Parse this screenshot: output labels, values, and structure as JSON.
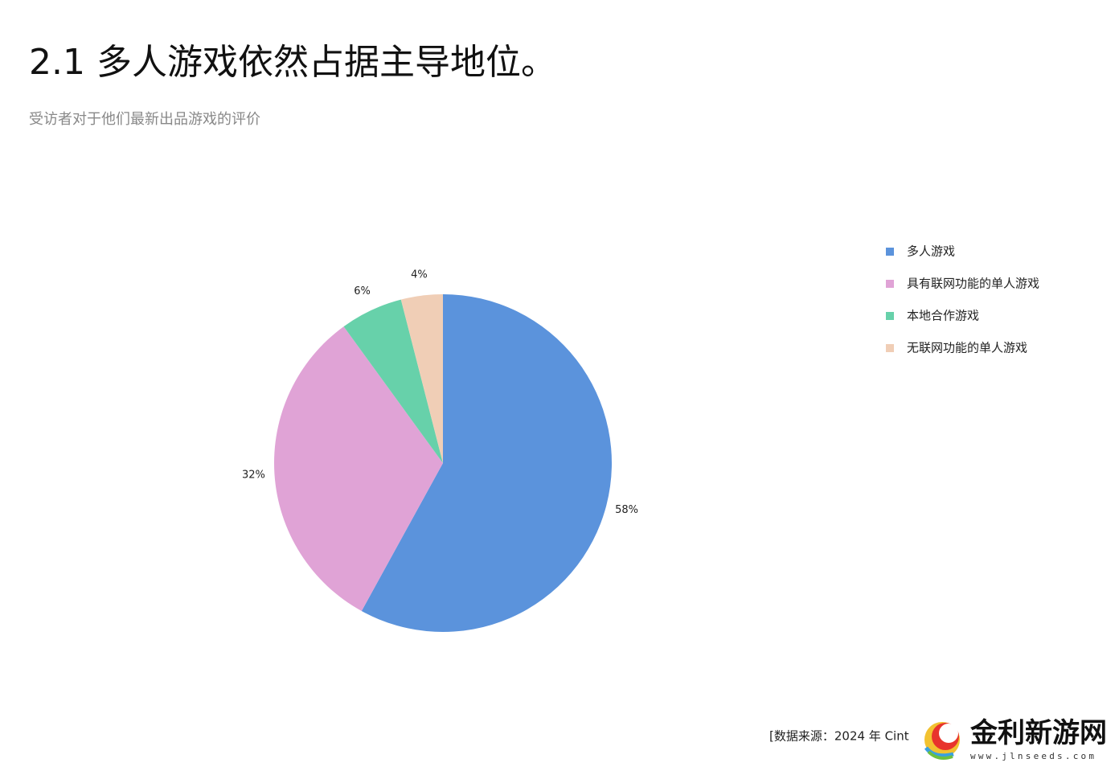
{
  "chart_data": {
    "type": "pie",
    "title": "2.1 多人游戏依然占据主导地位。",
    "subtitle": "受访者对于他们最新出品游戏的评价",
    "categories": [
      "多人游戏",
      "具有联网功能的单人游戏",
      "本地合作游戏",
      "无联网功能的单人游戏"
    ],
    "values": [
      58,
      32,
      6,
      4
    ],
    "value_labels": [
      "58%",
      "32%",
      "6%",
      "4%"
    ],
    "colors": [
      "#5b93dc",
      "#e0a3d6",
      "#67d1aa",
      "#f0ceb6"
    ],
    "source": "[数据来源：2024 年 Cint"
  },
  "watermark": {
    "name": "金利新游网",
    "url": "www.jlnseeds.com"
  }
}
